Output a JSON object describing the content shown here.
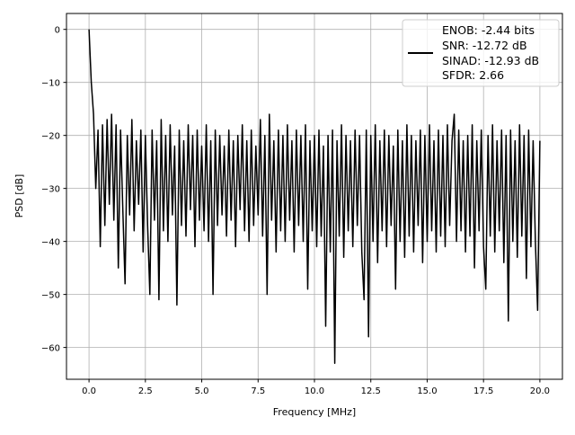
{
  "chart_data": {
    "type": "line",
    "title": "",
    "xlabel": "Frequency [MHz]",
    "ylabel": "PSD [dB]",
    "xlim": [
      -1,
      21
    ],
    "ylim": [
      -66,
      3
    ],
    "grid": true,
    "legend_placement": "upper-right",
    "x_ticks": [
      "0.0",
      "2.5",
      "5.0",
      "7.5",
      "10.0",
      "12.5",
      "15.0",
      "17.5",
      "20.0"
    ],
    "y_ticks": [
      "0",
      "−10",
      "−20",
      "−30",
      "−40",
      "−50",
      "−60"
    ],
    "x_tick_values": [
      0,
      2.5,
      5,
      7.5,
      10,
      12.5,
      15,
      17.5,
      20
    ],
    "y_tick_values": [
      0,
      -10,
      -20,
      -30,
      -40,
      -50,
      -60
    ],
    "legend": [
      "ENOB: -2.44 bits",
      "SNR: -12.72 dB",
      "SINAD: -12.93 dB",
      "SFDR: 2.66"
    ],
    "line_color": "#000000",
    "series": [
      {
        "x_range": [
          0,
          20
        ],
        "values": [
          0,
          -10,
          -16,
          -30,
          -19,
          -41,
          -18,
          -37,
          -17,
          -33,
          -16,
          -36,
          -18,
          -45,
          -19,
          -34,
          -48,
          -20,
          -35,
          -17,
          -38,
          -21,
          -33,
          -19,
          -42,
          -20,
          -37,
          -50,
          -19,
          -36,
          -21,
          -51,
          -17,
          -38,
          -20,
          -40,
          -18,
          -35,
          -22,
          -52,
          -19,
          -37,
          -21,
          -39,
          -18,
          -34,
          -20,
          -41,
          -19,
          -36,
          -22,
          -38,
          -18,
          -40,
          -21,
          -50,
          -19,
          -37,
          -20,
          -35,
          -22,
          -39,
          -19,
          -36,
          -21,
          -41,
          -20,
          -34,
          -18,
          -38,
          -21,
          -40,
          -19,
          -37,
          -22,
          -35,
          -17,
          -39,
          -20,
          -50,
          -16,
          -36,
          -21,
          -42,
          -19,
          -38,
          -20,
          -40,
          -18,
          -36,
          -21,
          -42,
          -19,
          -37,
          -20,
          -40,
          -18,
          -49,
          -21,
          -38,
          -20,
          -41,
          -19,
          -39,
          -22,
          -56,
          -20,
          -42,
          -19,
          -63,
          -21,
          -39,
          -18,
          -43,
          -20,
          -38,
          -21,
          -41,
          -19,
          -37,
          -20,
          -42,
          -51,
          -19,
          -58,
          -20,
          -40,
          -18,
          -44,
          -21,
          -38,
          -19,
          -41,
          -20,
          -37,
          -22,
          -49,
          -19,
          -40,
          -21,
          -43,
          -18,
          -39,
          -20,
          -42,
          -21,
          -37,
          -19,
          -44,
          -20,
          -40,
          -18,
          -38,
          -21,
          -42,
          -19,
          -39,
          -20,
          -41,
          -18,
          -37,
          -21,
          -16,
          -40,
          -19,
          -38,
          -21,
          -42,
          -20,
          -39,
          -18,
          -45,
          -21,
          -38,
          -19,
          -41,
          -49,
          -20,
          -39,
          -18,
          -42,
          -21,
          -38,
          -19,
          -44,
          -20,
          -55,
          -19,
          -40,
          -21,
          -43,
          -18,
          -39,
          -20,
          -47,
          -19,
          -41,
          -21,
          -40,
          -53,
          -21
        ]
      }
    ]
  }
}
